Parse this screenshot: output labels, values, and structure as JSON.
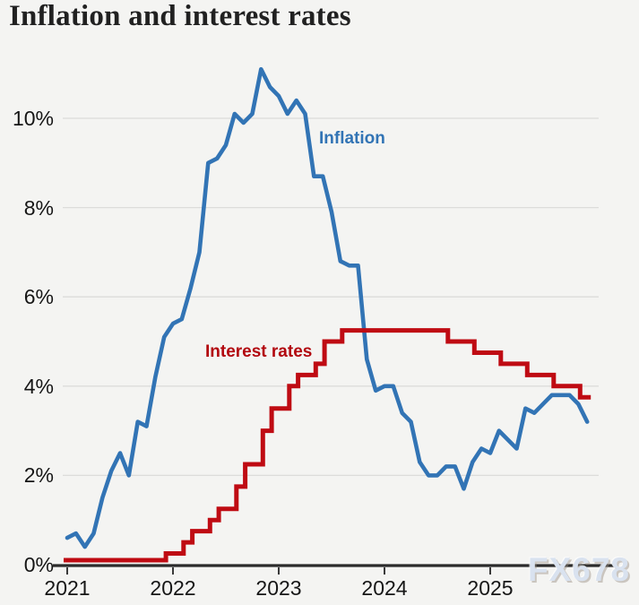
{
  "title": "Inflation and interest rates",
  "watermark": "FX678",
  "colors": {
    "background": "#f4f4f2",
    "inflation_line": "#3274b5",
    "interest_line": "#bf0b13",
    "inflation_label": "#3274b5",
    "interest_label": "#b2070f",
    "axis": "#2b2b2b",
    "tick": "#3a3a3a",
    "grid": "#dcdcda",
    "text": "#161616",
    "watermark": "#d9e2ef"
  },
  "y_axis": {
    "labels": [
      "10%",
      "8%",
      "6%",
      "4%",
      "2%",
      "0%"
    ],
    "values": [
      10,
      8,
      6,
      4,
      2,
      0
    ]
  },
  "x_axis": {
    "labels": [
      "2021",
      "2022",
      "2023",
      "2024",
      "2025"
    ]
  },
  "series_labels": {
    "inflation": "Inflation",
    "interest": "Interest rates"
  },
  "chart_data": {
    "type": "line",
    "title": "Inflation and interest rates",
    "xlabel": "",
    "ylabel": "",
    "ylim": [
      0,
      11.5
    ],
    "y_ticks": [
      0,
      2,
      4,
      6,
      8,
      10
    ],
    "y_tick_format": "percent",
    "x_ticks": [
      "2021",
      "2022",
      "2023",
      "2024",
      "2025"
    ],
    "grid": "horizontal",
    "legend_position": "inline-labels",
    "series": [
      {
        "name": "Inflation",
        "color": "#3274b5",
        "frequency": "monthly",
        "x_start": "2020-12",
        "values": [
          0.6,
          0.7,
          0.4,
          0.7,
          1.5,
          2.1,
          2.5,
          2.0,
          3.2,
          3.1,
          4.2,
          5.1,
          5.4,
          5.5,
          6.2,
          7.0,
          9.0,
          9.1,
          9.4,
          10.1,
          9.9,
          10.1,
          11.1,
          10.7,
          10.5,
          10.1,
          10.4,
          10.1,
          8.7,
          8.7,
          7.9,
          6.8,
          6.7,
          6.7,
          4.6,
          3.9,
          4.0,
          4.0,
          3.4,
          3.2,
          2.3,
          2.0,
          2.0,
          2.2,
          2.2,
          1.7,
          2.3,
          2.6,
          2.5,
          3.0,
          2.8,
          2.6,
          3.5,
          3.4,
          3.6,
          3.8,
          3.8,
          3.8,
          3.6,
          3.2
        ]
      },
      {
        "name": "Interest rates",
        "color": "#bf0b13",
        "style": "step-after",
        "steps": [
          [
            "2021-01",
            0.1
          ],
          [
            "2021-12",
            0.25
          ],
          [
            "2022-02",
            0.5
          ],
          [
            "2022-03",
            0.75
          ],
          [
            "2022-05",
            1.0
          ],
          [
            "2022-06",
            1.25
          ],
          [
            "2022-08",
            1.75
          ],
          [
            "2022-09",
            2.25
          ],
          [
            "2022-11",
            3.0
          ],
          [
            "2022-12",
            3.5
          ],
          [
            "2023-02",
            4.0
          ],
          [
            "2023-03",
            4.25
          ],
          [
            "2023-05",
            4.5
          ],
          [
            "2023-06",
            5.0
          ],
          [
            "2023-08",
            5.25
          ],
          [
            "2024-08",
            5.0
          ],
          [
            "2024-11",
            4.75
          ],
          [
            "2025-02",
            4.5
          ],
          [
            "2025-05",
            4.25
          ],
          [
            "2025-08",
            4.0
          ],
          [
            "2025-11",
            3.75
          ]
        ],
        "end": "2025-12"
      }
    ]
  }
}
